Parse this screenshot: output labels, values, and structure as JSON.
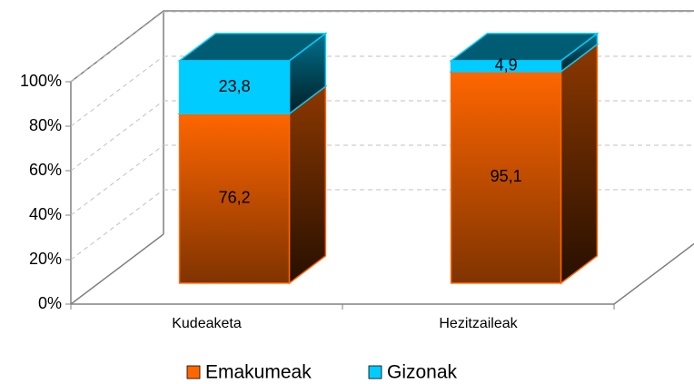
{
  "chart_data": {
    "type": "bar3d_stacked",
    "categories": [
      "Kudeaketa",
      "Hezitzaileak"
    ],
    "series": [
      {
        "name": "Emakumeak",
        "color": "#ff6600",
        "values": [
          76.2,
          95.1
        ],
        "value_labels": [
          "76,2",
          "95,1"
        ]
      },
      {
        "name": "Gizonak",
        "color": "#00ccff",
        "values": [
          23.8,
          4.9
        ],
        "value_labels": [
          "23,8",
          "4,9"
        ]
      }
    ],
    "ylim": [
      0,
      100
    ],
    "yticks": [
      {
        "value": 0,
        "label": "0%"
      },
      {
        "value": 20,
        "label": "20%"
      },
      {
        "value": 40,
        "label": "40%"
      },
      {
        "value": 60,
        "label": "60%"
      },
      {
        "value": 80,
        "label": "80%"
      },
      {
        "value": 100,
        "label": "100%"
      }
    ],
    "grid": true,
    "legend": "bottom"
  }
}
